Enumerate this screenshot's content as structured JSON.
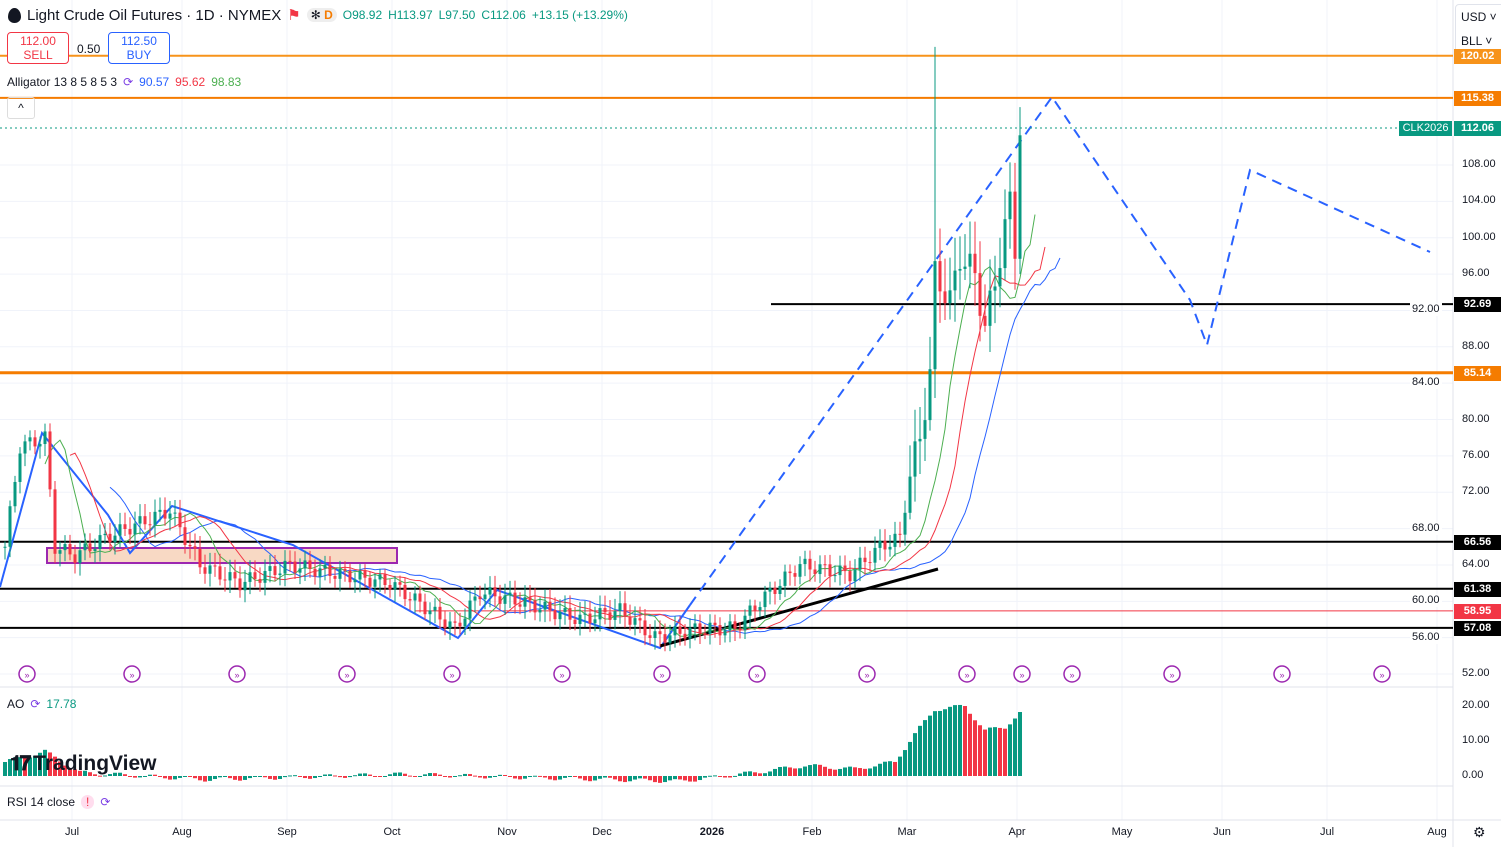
{
  "header": {
    "title": "Light Crude Oil Futures · 1D · NYMEX",
    "open": "O98.92",
    "high": "H113.97",
    "low": "L97.50",
    "close": "C112.06",
    "change": "+13.15 (+13.29%)",
    "badge_d": "D"
  },
  "trade": {
    "sell_price": "112.00",
    "sell_label": "SELL",
    "spread": "0.50",
    "buy_price": "112.50",
    "buy_label": "BUY"
  },
  "alligator": {
    "label": "Alligator 13 8 5 8 5 3",
    "jaw": "90.57",
    "teeth": "95.62",
    "lips": "98.83"
  },
  "ao": {
    "label": "AO",
    "value": "17.78"
  },
  "rsi": {
    "label": "RSI 14 close",
    "warn": "!"
  },
  "scale": {
    "currency": "USD",
    "unit": "BLL"
  },
  "price_ticks": [
    "108.00",
    "104.00",
    "100.00",
    "96.00",
    "92.00",
    "88.00",
    "84.00",
    "80.00",
    "76.00",
    "72.00",
    "68.00",
    "64.00",
    "60.00",
    "56.00",
    "52.00"
  ],
  "ao_ticks": [
    "20.00",
    "10.00",
    "0.00"
  ],
  "levels": [
    {
      "price": "120.02",
      "color": "#f7931a"
    },
    {
      "price": "115.38",
      "color": "#f57c00"
    },
    {
      "price": "92.69",
      "color": "#000000"
    },
    {
      "price": "85.14",
      "color": "#f57c00"
    },
    {
      "price": "66.56",
      "color": "#000000"
    },
    {
      "price": "61.38",
      "color": "#000000"
    },
    {
      "price": "58.95",
      "color": "#f23645"
    },
    {
      "price": "57.08",
      "color": "#000000"
    }
  ],
  "last": {
    "symbol": "CLK2026",
    "price": "112.06"
  },
  "x_labels": [
    "Jul",
    "Aug",
    "Sep",
    "Oct",
    "Nov",
    "Dec",
    "2026",
    "Feb",
    "Mar",
    "Apr",
    "May",
    "Jun",
    "Jul",
    "Aug"
  ],
  "logo": "TradingView",
  "chart_data": {
    "type": "candlestick",
    "closes_approx": [
      [
        0,
        66
      ],
      [
        3,
        77
      ],
      [
        8,
        78
      ],
      [
        10,
        66
      ],
      [
        14,
        65
      ],
      [
        20,
        67
      ],
      [
        33,
        70
      ],
      [
        39,
        64
      ],
      [
        47,
        62
      ],
      [
        57,
        64
      ],
      [
        67,
        63
      ],
      [
        77,
        62
      ],
      [
        85,
        59
      ],
      [
        90,
        57
      ],
      [
        95,
        61
      ],
      [
        103,
        60
      ],
      [
        115,
        58
      ],
      [
        123,
        59
      ],
      [
        130,
        56
      ],
      [
        139,
        57
      ],
      [
        146,
        57
      ],
      [
        151,
        60
      ],
      [
        159,
        64
      ],
      [
        169,
        63
      ],
      [
        175,
        66
      ],
      [
        179,
        67
      ],
      [
        181,
        74
      ],
      [
        183,
        78
      ],
      [
        185,
        85
      ],
      [
        186,
        96
      ],
      [
        189,
        93
      ],
      [
        191,
        98
      ],
      [
        194,
        96
      ],
      [
        196,
        90
      ],
      [
        199,
        98
      ],
      [
        201,
        104
      ],
      [
        202,
        99
      ],
      [
        203,
        112
      ]
    ],
    "ao_approx": [
      [
        0,
        4
      ],
      [
        8,
        7
      ],
      [
        15,
        1
      ],
      [
        40,
        -1
      ],
      [
        80,
        0.5
      ],
      [
        120,
        -1
      ],
      [
        135,
        -1.5
      ],
      [
        150,
        1
      ],
      [
        160,
        3
      ],
      [
        170,
        2
      ],
      [
        178,
        4
      ],
      [
        182,
        12
      ],
      [
        186,
        19
      ],
      [
        192,
        20
      ],
      [
        196,
        13
      ],
      [
        200,
        14
      ],
      [
        203,
        18
      ]
    ]
  }
}
